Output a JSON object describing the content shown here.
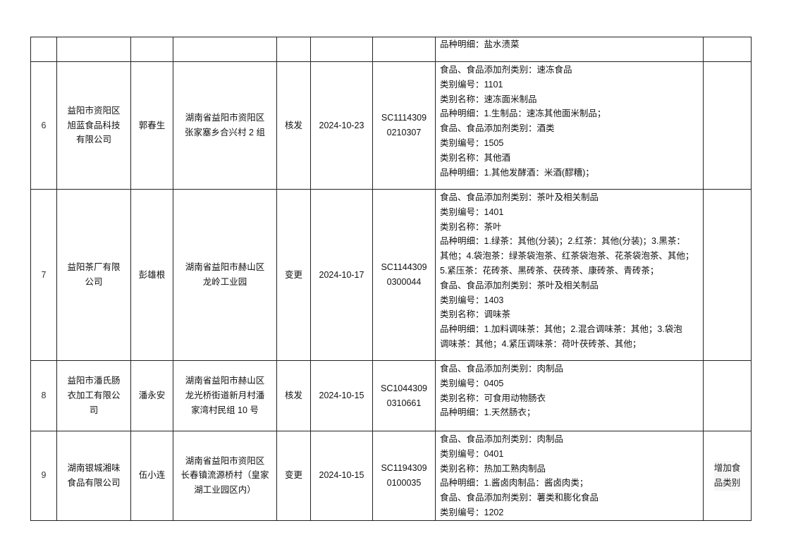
{
  "rows": [
    {
      "no": "",
      "company": "",
      "person": "",
      "address": "",
      "type": "",
      "date": "",
      "license": "",
      "details": "品种明细：盐水渍菜",
      "remark": ""
    },
    {
      "no": "6",
      "company": "益阳市资阳区\n旭蓝食品科技\n有限公司",
      "person": "郭春生",
      "address": "湖南省益阳市资阳区\n张家塞乡合兴村 2 组",
      "type": "核发",
      "date": "2024-10-23",
      "license": "SC1114309\n0210307",
      "details": "食品、食品添加剂类别：速冻食品\n类别编号：1101\n类别名称：速冻面米制品\n品种明细：1.生制品：速冻其他面米制品；\n食品、食品添加剂类别：酒类\n类别编号：1505\n类别名称：其他酒\n品种明细：1.其他发酵酒：米酒(醪糟)；",
      "remark": ""
    },
    {
      "no": "7",
      "company": "益阳茶厂有限\n公司",
      "person": "彭雄根",
      "address": "湖南省益阳市赫山区\n龙岭工业园",
      "type": "变更",
      "date": "2024-10-17",
      "license": "SC1144309\n0300044",
      "details": "食品、食品添加剂类别：茶叶及相关制品\n类别编号：1401\n类别名称：茶叶\n品种明细：1.绿茶：其他(分装)；2.红茶：其他(分装)；3.黑茶：\n其他；4.袋泡茶：绿茶袋泡茶、红茶袋泡茶、花茶袋泡茶、其他；\n5.紧压茶：花砖茶、黑砖茶、茯砖茶、康砖茶、青砖茶；\n食品、食品添加剂类别：茶叶及相关制品\n类别编号：1403\n类别名称：调味茶\n品种明细：1.加料调味茶：其他；2.混合调味茶：其他；3.袋泡\n调味茶：其他；4.紧压调味茶：荷叶茯砖茶、其他；",
      "remark": ""
    },
    {
      "no": "8",
      "company": "益阳市潘氏肠\n衣加工有限公\n司",
      "person": "潘永安",
      "address": "湖南省益阳市赫山区\n龙光桥街道新月村潘\n家湾村民组 10 号",
      "type": "核发",
      "date": "2024-10-15",
      "license": "SC1044309\n0310661",
      "details": "食品、食品添加剂类别：肉制品\n类别编号：0405\n类别名称：可食用动物肠衣\n品种明细：1.天然肠衣；",
      "remark": ""
    },
    {
      "no": "9",
      "company": "湖南银城湘味\n食品有限公司",
      "person": "伍小连",
      "address": "湖南省益阳市资阳区\n长春镇流源桥村（皇家\n湖工业园区内）",
      "type": "变更",
      "date": "2024-10-15",
      "license": "SC1194309\n0100035",
      "details": "食品、食品添加剂类别：肉制品\n类别编号：0401\n类别名称：热加工熟肉制品\n品种明细：1.酱卤肉制品：酱卤肉类；\n食品、食品添加剂类别：薯类和膨化食品\n类别编号：1202",
      "remark": "增加食\n品类别"
    }
  ]
}
